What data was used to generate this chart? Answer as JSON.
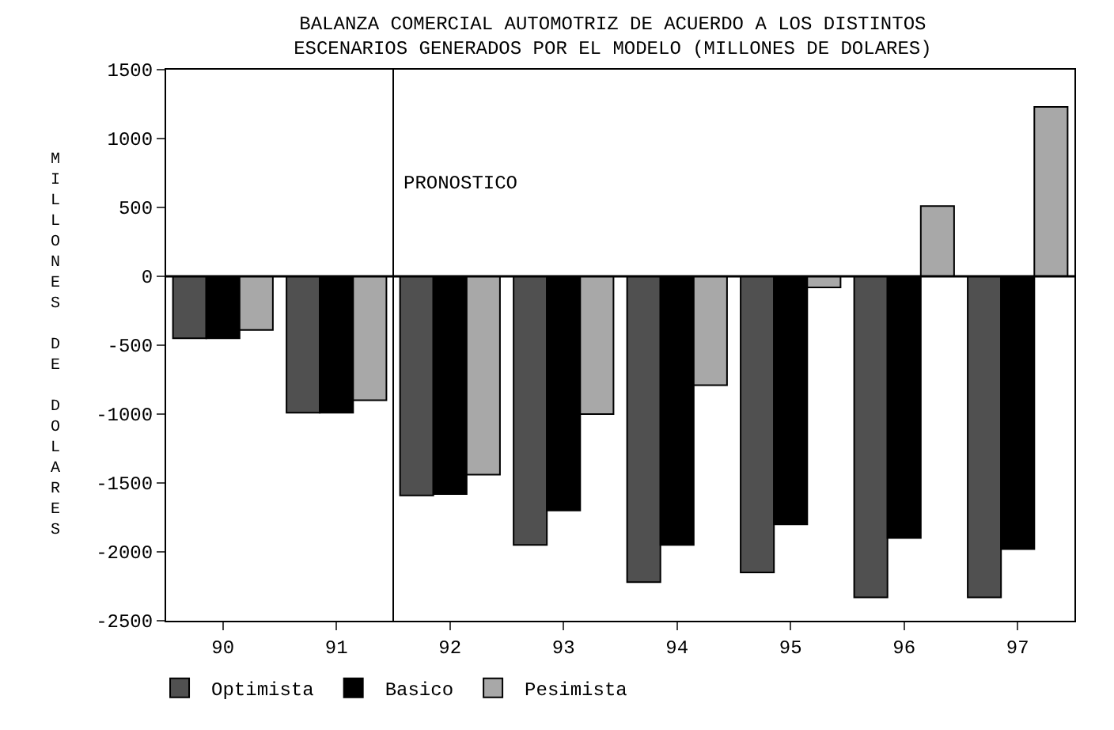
{
  "chart_data": {
    "type": "bar",
    "title": "BALANZA COMERCIAL AUTOMOTRIZ DE ACUERDO A LOS DISTINTOS\nESCENARIOS GENERADOS POR EL MODELO (MILLONES DE DOLARES)",
    "ylabel": "MILLONES DE DOLARES",
    "categories": [
      "90",
      "91",
      "92",
      "93",
      "94",
      "95",
      "96",
      "97"
    ],
    "series": [
      {
        "name": "Optimista",
        "color": "#505050",
        "values": [
          -450,
          -990,
          -1590,
          -1950,
          -2220,
          -2150,
          -2330,
          -2330
        ]
      },
      {
        "name": "Basico",
        "color": "#000000",
        "values": [
          -450,
          -990,
          -1580,
          -1700,
          -1950,
          -1800,
          -1900,
          -1980
        ]
      },
      {
        "name": "Pesimista",
        "color": "#a8a8a8",
        "values": [
          -390,
          -900,
          -1440,
          -1000,
          -790,
          -80,
          510,
          1230
        ]
      }
    ],
    "ylim": [
      -2500,
      1500
    ],
    "yticks": [
      -2500,
      -2000,
      -1500,
      -1000,
      -500,
      0,
      500,
      1000,
      1500
    ],
    "ref_lines": [
      {
        "axis": "x",
        "value": "92",
        "label": "PRONOSTICO"
      }
    ],
    "legend": "bottom left"
  }
}
